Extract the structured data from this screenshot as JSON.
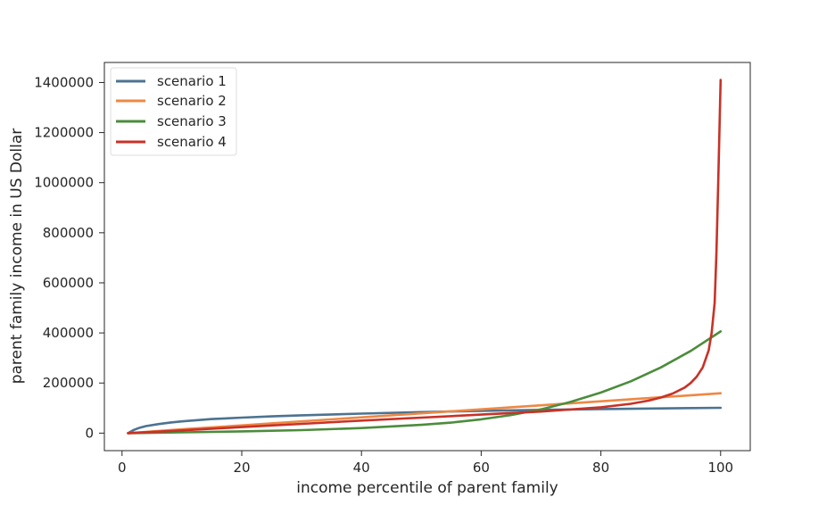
{
  "chart_data": {
    "type": "line",
    "title": "",
    "xlabel": "income percentile of parent family",
    "ylabel": "parent family income in US Dollar",
    "xlim": [
      -2.95,
      104.95
    ],
    "ylim": [
      -70000,
      1480000
    ],
    "xticks": [
      0,
      20,
      40,
      60,
      80,
      100
    ],
    "yticks": [
      0,
      200000,
      400000,
      600000,
      800000,
      1000000,
      1200000,
      1400000
    ],
    "grid": false,
    "legend_position": "top-left",
    "series": [
      {
        "name": "scenario 1",
        "color": "#4c7391",
        "x": [
          1,
          2,
          3,
          4,
          6,
          8,
          10,
          15,
          20,
          25,
          30,
          40,
          50,
          60,
          70,
          80,
          90,
          100
        ],
        "y": [
          0,
          13000,
          22000,
          28000,
          36000,
          42000,
          47000,
          56000,
          62000,
          67000,
          71000,
          78000,
          84000,
          89000,
          93000,
          96000,
          98500,
          101000
        ]
      },
      {
        "name": "scenario 2",
        "color": "#ee8844",
        "x": [
          1,
          10,
          20,
          30,
          40,
          50,
          60,
          70,
          80,
          90,
          100
        ],
        "y": [
          0,
          15000,
          31000,
          47000,
          63000,
          79000,
          95000,
          111000,
          127000,
          143000,
          159000
        ]
      },
      {
        "name": "scenario 3",
        "color": "#4c8c3c",
        "x": [
          1,
          10,
          20,
          30,
          40,
          50,
          55,
          60,
          65,
          70,
          75,
          80,
          85,
          90,
          95,
          100
        ],
        "y": [
          0,
          3000,
          7000,
          12000,
          20000,
          33000,
          42000,
          55000,
          72000,
          95000,
          125000,
          162000,
          207000,
          262000,
          328000,
          406000
        ]
      },
      {
        "name": "scenario 4",
        "color": "#c83227",
        "x": [
          1,
          10,
          20,
          30,
          40,
          50,
          60,
          70,
          80,
          85,
          88,
          90,
          92,
          94,
          95,
          96,
          97,
          98,
          98.5,
          99,
          99.3,
          99.6,
          100
        ],
        "y": [
          0,
          11000,
          24000,
          37000,
          50000,
          62000,
          74000,
          86000,
          103000,
          117000,
          130000,
          142000,
          158000,
          182000,
          200000,
          225000,
          262000,
          330000,
          400000,
          520000,
          720000,
          1000000,
          1410000
        ]
      }
    ]
  }
}
